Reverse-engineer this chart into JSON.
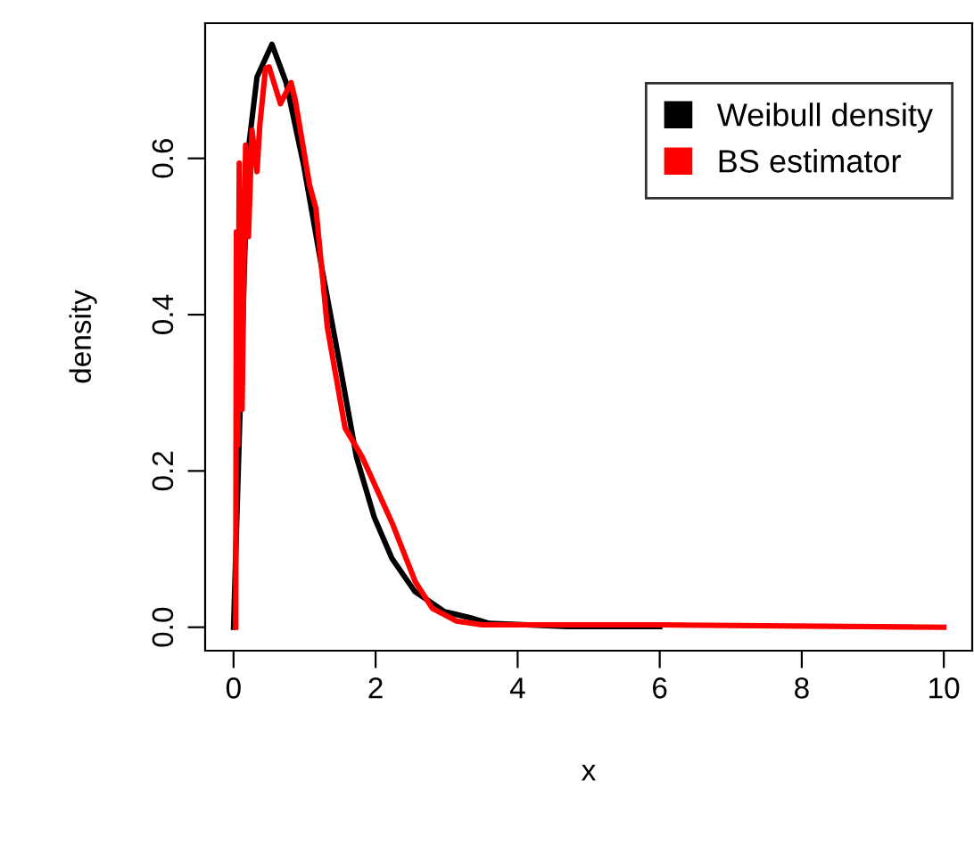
{
  "chart_data": {
    "type": "line",
    "xlabel": "x",
    "ylabel": "density",
    "xlim": [
      -0.4,
      10.4
    ],
    "ylim": [
      -0.03,
      0.773
    ],
    "xticks": [
      0,
      2,
      4,
      6,
      8,
      10
    ],
    "yticks": [
      {
        "value": 0,
        "label": "0.0"
      },
      0.2,
      0.4,
      0.6
    ],
    "legend": "top right",
    "grid": false,
    "marker": "none",
    "line_style": "solid",
    "series": [
      {
        "name": "Weibull density",
        "color": "#000000",
        "x": [
          0,
          0.2,
          0.33,
          0.54,
          0.74,
          0.99,
          1.24,
          1.49,
          1.73,
          1.98,
          2.23,
          2.55,
          2.97,
          3.38,
          3.6,
          4.7,
          6
        ],
        "values": [
          0,
          0.605,
          0.704,
          0.746,
          0.697,
          0.59,
          0.461,
          0.339,
          0.218,
          0.141,
          0.088,
          0.046,
          0.02,
          0.011,
          0.005,
          0.001,
          0.001
        ]
      },
      {
        "name": "BS estimator",
        "color": "#ff0000",
        "x": [
          0.03,
          0.04,
          0.06,
          0.08,
          0.12,
          0.17,
          0.21,
          0.26,
          0.33,
          0.37,
          0.45,
          0.5,
          0.66,
          0.81,
          0.87,
          1.07,
          1.16,
          1.32,
          1.57,
          1.81,
          2.23,
          2.56,
          2.8,
          3.14,
          3.5,
          6,
          10
        ],
        "values": [
          0,
          0.506,
          0.233,
          0.594,
          0.279,
          0.617,
          0.5,
          0.636,
          0.583,
          0.643,
          0.715,
          0.717,
          0.67,
          0.697,
          0.674,
          0.566,
          0.536,
          0.384,
          0.255,
          0.218,
          0.134,
          0.058,
          0.024,
          0.008,
          0.003,
          0.003,
          0
        ]
      }
    ]
  }
}
